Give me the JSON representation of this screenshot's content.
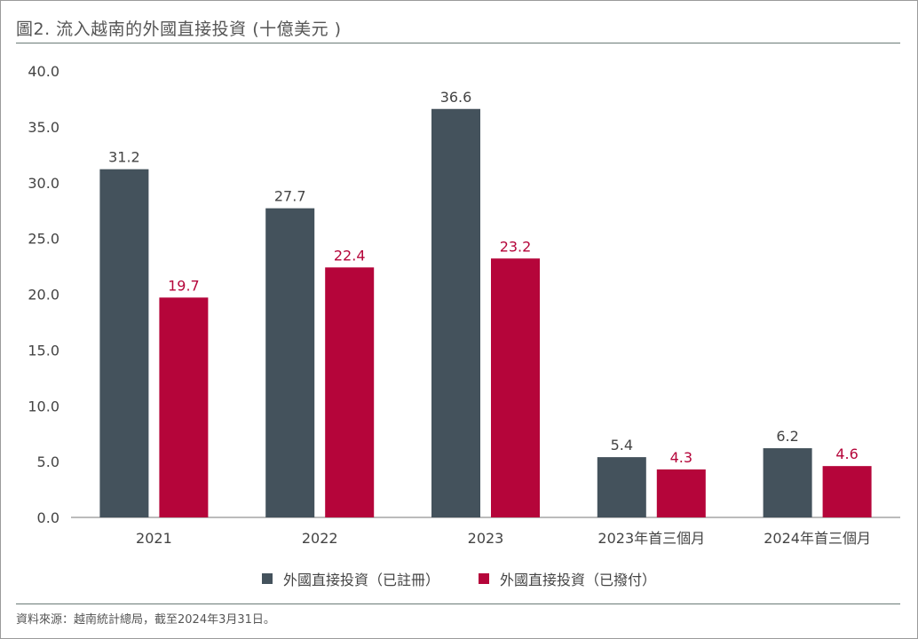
{
  "title": "圖2. 流入越南的外國直接投資 (十億美元 )",
  "source": "資料來源：越南統計總局，截至2024年3月31日。",
  "colors": {
    "registered": "#44525c",
    "disbursed": "#b5053a",
    "axis": "#555555",
    "rule": "#6a7a76"
  },
  "chart_data": {
    "type": "bar",
    "title": "圖2. 流入越南的外國直接投資 (十億美元 )",
    "xlabel": "",
    "ylabel": "",
    "ylim": [
      0,
      40
    ],
    "yticks": [
      "0.0",
      "5.0",
      "10.0",
      "15.0",
      "20.0",
      "25.0",
      "30.0",
      "35.0",
      "40.0"
    ],
    "grid": false,
    "legend_position": "bottom",
    "categories": [
      "2021",
      "2022",
      "2023",
      "2023年首三個月",
      "2024年首三個月"
    ],
    "series": [
      {
        "name": "外國直接投資（已註冊）",
        "values": [
          31.2,
          27.7,
          36.6,
          5.4,
          6.2
        ],
        "labels": [
          "31.2",
          "27.7",
          "36.6",
          "5.4",
          "6.2"
        ]
      },
      {
        "name": "外國直接投資（已撥付）",
        "values": [
          19.7,
          22.4,
          23.2,
          4.3,
          4.6
        ],
        "labels": [
          "19.7",
          "22.4",
          "23.2",
          "4.3",
          "4.6"
        ]
      }
    ]
  }
}
